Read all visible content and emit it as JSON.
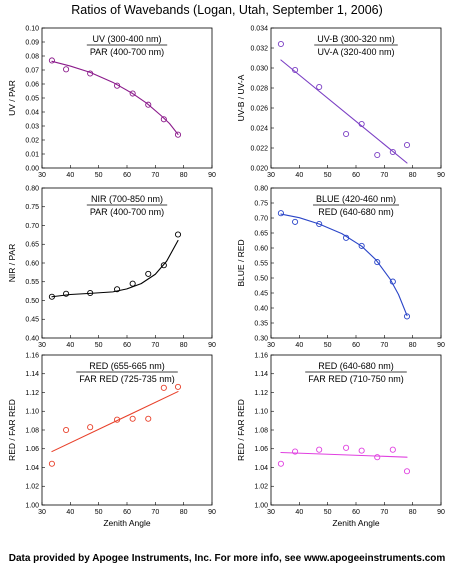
{
  "figure": {
    "title": "Ratios of Wavebands (Logan, Utah, September 1, 2006)",
    "footer": "Data provided by Apogee Instruments, Inc.  For more info, see www.apogeeinstruments.com"
  },
  "chart_data": [
    {
      "id": "uv-par",
      "type": "scatter",
      "numerator": "UV (300-400 nm)",
      "denominator": "PAR (400-700 nm)",
      "ylabel": "UV / PAR",
      "xlabel": "",
      "xlim": [
        30,
        90
      ],
      "xticks": [
        30,
        40,
        50,
        60,
        70,
        80,
        90
      ],
      "ylim": [
        0,
        0.1
      ],
      "yticks": [
        0,
        0.01,
        0.02,
        0.03,
        0.04,
        0.05,
        0.06,
        0.07,
        0.08,
        0.09,
        0.1
      ],
      "ydecimals": 2,
      "color": "#8b1a8b",
      "x": [
        33.5,
        38.5,
        47,
        56.5,
        62,
        67.5,
        73,
        78
      ],
      "y": [
        0.0768,
        0.0705,
        0.0675,
        0.0588,
        0.0532,
        0.0452,
        0.0348,
        0.0238
      ],
      "fit": {
        "x": [
          33.5,
          40,
          47,
          55,
          62,
          67,
          72,
          75,
          78
        ],
        "y": [
          0.0762,
          0.0728,
          0.0683,
          0.0612,
          0.0532,
          0.0462,
          0.0375,
          0.0318,
          0.024
        ]
      }
    },
    {
      "id": "uvb-uva",
      "type": "scatter",
      "numerator": "UV-B (300-320 nm)",
      "denominator": "UV-A (320-400 nm)",
      "ylabel": "UV-B / UV-A",
      "xlabel": "",
      "xlim": [
        30,
        90
      ],
      "xticks": [
        30,
        40,
        50,
        60,
        70,
        80,
        90
      ],
      "ylim": [
        0.02,
        0.034
      ],
      "yticks": [
        0.02,
        0.022,
        0.024,
        0.026,
        0.028,
        0.03,
        0.032,
        0.034
      ],
      "ydecimals": 3,
      "color": "#7b3fc4",
      "x": [
        33.5,
        38.5,
        47,
        56.5,
        62,
        67.5,
        73,
        78
      ],
      "y": [
        0.0324,
        0.0298,
        0.0281,
        0.0234,
        0.0244,
        0.0213,
        0.0216,
        0.0223
      ],
      "fit": {
        "x": [
          33.5,
          78
        ],
        "y": [
          0.0308,
          0.0205
        ]
      }
    },
    {
      "id": "nir-par",
      "type": "scatter",
      "numerator": "NIR (700-850 nm)",
      "denominator": "PAR (400-700 nm)",
      "ylabel": "NIR / PAR",
      "xlabel": "",
      "xlim": [
        30,
        90
      ],
      "xticks": [
        30,
        40,
        50,
        60,
        70,
        80,
        90
      ],
      "ylim": [
        0.4,
        0.8
      ],
      "yticks": [
        0.4,
        0.45,
        0.5,
        0.55,
        0.6,
        0.65,
        0.7,
        0.75,
        0.8
      ],
      "ydecimals": 2,
      "color": "#000000",
      "x": [
        33.5,
        38.5,
        47,
        56.5,
        62,
        67.5,
        73,
        78
      ],
      "y": [
        0.51,
        0.518,
        0.52,
        0.53,
        0.545,
        0.571,
        0.594,
        0.676
      ],
      "fit": {
        "x": [
          33.5,
          40,
          47,
          55,
          60,
          65,
          70,
          74,
          78
        ],
        "y": [
          0.51,
          0.516,
          0.519,
          0.523,
          0.531,
          0.545,
          0.57,
          0.605,
          0.66
        ]
      }
    },
    {
      "id": "blue-red",
      "type": "scatter",
      "numerator": "BLUE (420-460 nm)",
      "denominator": "RED (640-680 nm)",
      "ylabel": "BLUE / RED",
      "xlabel": "",
      "xlim": [
        30,
        90
      ],
      "xticks": [
        30,
        40,
        50,
        60,
        70,
        80,
        90
      ],
      "ylim": [
        0.3,
        0.8
      ],
      "yticks": [
        0.3,
        0.35,
        0.4,
        0.45,
        0.5,
        0.55,
        0.6,
        0.65,
        0.7,
        0.75,
        0.8
      ],
      "ydecimals": 2,
      "color": "#2a45c8",
      "x": [
        33.5,
        38.5,
        47,
        56.5,
        62,
        67.5,
        73,
        78
      ],
      "y": [
        0.716,
        0.687,
        0.68,
        0.634,
        0.607,
        0.553,
        0.488,
        0.372
      ],
      "fit": {
        "x": [
          33.5,
          40,
          47,
          55,
          62,
          67,
          72,
          75,
          78
        ],
        "y": [
          0.713,
          0.701,
          0.68,
          0.648,
          0.606,
          0.561,
          0.497,
          0.445,
          0.375
        ]
      }
    },
    {
      "id": "red-farred-1",
      "type": "scatter",
      "numerator": "RED (655-665 nm)",
      "denominator": "FAR RED (725-735 nm)",
      "ylabel": "RED / FAR RED",
      "xlabel": "Zenith Angle",
      "xlim": [
        30,
        90
      ],
      "xticks": [
        30,
        40,
        50,
        60,
        70,
        80,
        90
      ],
      "ylim": [
        1.0,
        1.16
      ],
      "yticks": [
        1.0,
        1.02,
        1.04,
        1.06,
        1.08,
        1.1,
        1.12,
        1.14,
        1.16
      ],
      "ydecimals": 2,
      "color": "#e8402a",
      "x": [
        33.5,
        38.5,
        47,
        56.5,
        62,
        67.5,
        73,
        78
      ],
      "y": [
        1.044,
        1.08,
        1.083,
        1.091,
        1.092,
        1.092,
        1.125,
        1.126
      ],
      "fit": {
        "x": [
          33.5,
          78
        ],
        "y": [
          1.057,
          1.121
        ]
      }
    },
    {
      "id": "red-farred-2",
      "type": "scatter",
      "numerator": "RED (640-680 nm)",
      "denominator": "FAR RED (710-750 nm)",
      "ylabel": "RED / FAR RED",
      "xlabel": "Zenith Angle",
      "xlim": [
        30,
        90
      ],
      "xticks": [
        30,
        40,
        50,
        60,
        70,
        80,
        90
      ],
      "ylim": [
        1.0,
        1.16
      ],
      "yticks": [
        1.0,
        1.02,
        1.04,
        1.06,
        1.08,
        1.1,
        1.12,
        1.14,
        1.16
      ],
      "ydecimals": 2,
      "color": "#e040e0",
      "x": [
        33.5,
        38.5,
        47,
        56.5,
        62,
        67.5,
        73,
        78
      ],
      "y": [
        1.044,
        1.057,
        1.059,
        1.061,
        1.058,
        1.051,
        1.059,
        1.036
      ],
      "fit": {
        "x": [
          33.5,
          78
        ],
        "y": [
          1.056,
          1.051
        ]
      }
    }
  ]
}
